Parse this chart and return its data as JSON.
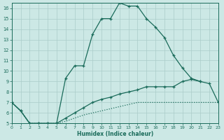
{
  "xlabel": "Humidex (Indice chaleur)",
  "bg_color": "#cce8e5",
  "grid_color": "#aaccc9",
  "line_color": "#1a6b5a",
  "xlim": [
    0,
    23
  ],
  "ylim": [
    5,
    16.5
  ],
  "yticks": [
    5,
    6,
    7,
    8,
    9,
    10,
    11,
    12,
    13,
    14,
    15,
    16
  ],
  "xticks": [
    0,
    1,
    2,
    3,
    4,
    5,
    6,
    7,
    8,
    9,
    10,
    11,
    12,
    13,
    14,
    15,
    16,
    17,
    18,
    19,
    20,
    21,
    22,
    23
  ],
  "curve_main_x": [
    0,
    1,
    2,
    3,
    4,
    5,
    6,
    7,
    8,
    9,
    10,
    11,
    12,
    13,
    14,
    15,
    16,
    17,
    18,
    19,
    20,
    21
  ],
  "curve_main_y": [
    7.0,
    6.2,
    5.0,
    5.0,
    5.0,
    5.0,
    9.3,
    10.5,
    10.5,
    13.5,
    15.0,
    15.0,
    16.5,
    16.2,
    16.2,
    15.0,
    14.2,
    13.2,
    11.5,
    10.3,
    9.3,
    9.0
  ],
  "curve_mid_x": [
    0,
    1,
    2,
    3,
    4,
    5,
    6,
    7,
    8,
    9,
    10,
    11,
    12,
    13,
    14,
    15,
    16,
    17,
    18,
    19,
    20,
    21,
    22,
    23
  ],
  "curve_mid_y": [
    7.0,
    6.2,
    5.0,
    5.0,
    5.0,
    5.0,
    5.5,
    6.0,
    6.5,
    7.0,
    7.3,
    7.5,
    7.8,
    8.0,
    8.2,
    8.5,
    8.5,
    8.5,
    8.5,
    9.0,
    9.2,
    9.0,
    8.8,
    7.0
  ],
  "curve_low_x": [
    0,
    1,
    2,
    3,
    4,
    5,
    6,
    7,
    8,
    9,
    10,
    11,
    12,
    13,
    14,
    15,
    16,
    17,
    18,
    19,
    20,
    21,
    22,
    23
  ],
  "curve_low_y": [
    7.0,
    6.2,
    5.0,
    5.0,
    5.0,
    5.0,
    5.2,
    5.5,
    5.8,
    6.0,
    6.2,
    6.4,
    6.6,
    6.8,
    7.0,
    7.0,
    7.0,
    7.0,
    7.0,
    7.0,
    7.0,
    7.0,
    7.0,
    7.0
  ]
}
